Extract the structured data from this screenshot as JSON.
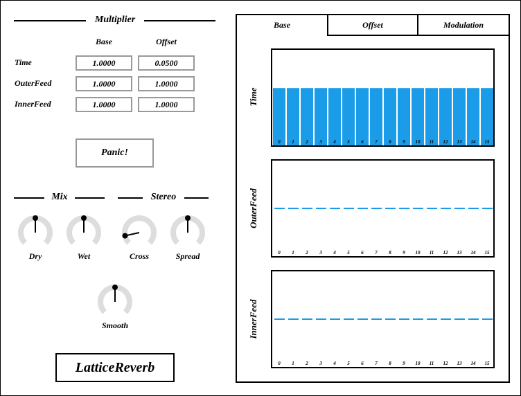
{
  "multiplier": {
    "title": "Multiplier",
    "col_base": "Base",
    "col_offset": "Offset",
    "rows": [
      {
        "label": "Time",
        "base": "1.0000",
        "offset": "0.0500"
      },
      {
        "label": "OuterFeed",
        "base": "1.0000",
        "offset": "1.0000"
      },
      {
        "label": "InnerFeed",
        "base": "1.0000",
        "offset": "1.0000"
      }
    ]
  },
  "panic_label": "Panic!",
  "mix_title": "Mix",
  "stereo_title": "Stereo",
  "knobs": [
    {
      "name": "dry",
      "label": "Dry",
      "value": 0.5
    },
    {
      "name": "wet",
      "label": "Wet",
      "value": 0.5
    },
    {
      "name": "cross",
      "label": "Cross",
      "value": 0.12
    },
    {
      "name": "spread",
      "label": "Spread",
      "value": 0.5
    },
    {
      "name": "smooth",
      "label": "Smooth",
      "value": 0.5
    }
  ],
  "logo_text": "LatticeReverb",
  "tabs": [
    "Base",
    "Offset",
    "Modulation"
  ],
  "active_tab": 0,
  "graphs": [
    {
      "title": "Time",
      "kind": "bar",
      "values": [
        0.6,
        0.6,
        0.6,
        0.6,
        0.6,
        0.6,
        0.6,
        0.6,
        0.6,
        0.6,
        0.6,
        0.6,
        0.6,
        0.6,
        0.6,
        0.6
      ]
    },
    {
      "title": "OuterFeed",
      "kind": "line",
      "values": [
        0.5,
        0.5,
        0.5,
        0.5,
        0.5,
        0.5,
        0.5,
        0.5,
        0.5,
        0.5,
        0.5,
        0.5,
        0.5,
        0.5,
        0.5,
        0.5
      ]
    },
    {
      "title": "InnerFeed",
      "kind": "line",
      "values": [
        0.5,
        0.5,
        0.5,
        0.5,
        0.5,
        0.5,
        0.5,
        0.5,
        0.5,
        0.5,
        0.5,
        0.5,
        0.5,
        0.5,
        0.5,
        0.5
      ]
    }
  ],
  "index_labels": [
    "0",
    "1",
    "2",
    "3",
    "4",
    "5",
    "6",
    "7",
    "8",
    "9",
    "10",
    "11",
    "12",
    "13",
    "14",
    "15"
  ],
  "colors": {
    "accent": "#1b9ce8",
    "knob_track": "#dddddd",
    "box_border": "#999999"
  }
}
